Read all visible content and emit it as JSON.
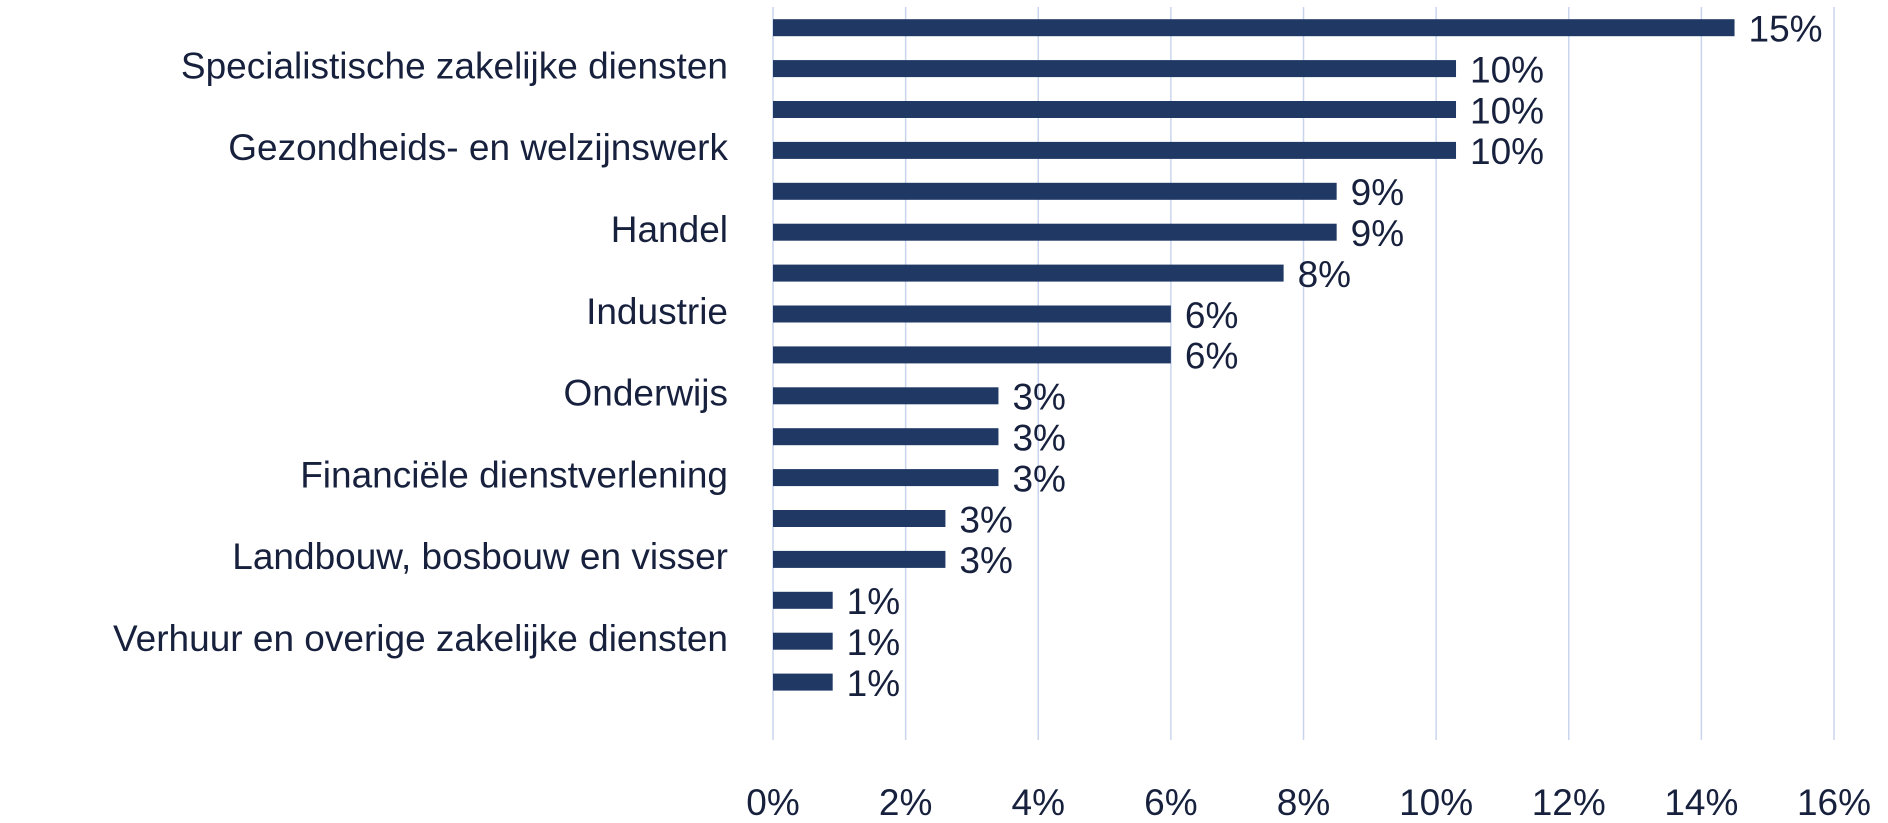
{
  "chart_data": {
    "type": "barh",
    "categories": [
      null,
      "Specialistische zakelijke diensten",
      null,
      "Gezondheids- en welzijnswerk",
      null,
      "Handel",
      null,
      "Industrie",
      null,
      "Onderwijs",
      null,
      "Financiële dienstverlening",
      null,
      "Landbouw, bosbouw en visser",
      null,
      "Verhuur en overige zakelijke diensten",
      null
    ],
    "values": [
      14.5,
      10.3,
      10.3,
      10.3,
      8.5,
      8.5,
      7.7,
      6.0,
      6.0,
      3.4,
      3.4,
      3.4,
      2.6,
      2.6,
      0.9,
      0.9,
      0.9
    ],
    "value_labels": [
      "15%",
      "10%",
      "10%",
      "10%",
      "9%",
      "9%",
      "8%",
      "6%",
      "6%",
      "3%",
      "3%",
      "3%",
      "3%",
      "3%",
      "1%",
      "1%",
      "1%"
    ],
    "color": "#1f3864",
    "xlim": [
      0,
      16
    ],
    "xticks": [
      {
        "value": 0,
        "label": "0%"
      },
      {
        "value": 2,
        "label": "2%"
      },
      {
        "value": 4,
        "label": "4%"
      },
      {
        "value": 6,
        "label": "6%"
      },
      {
        "value": 8,
        "label": "8%"
      },
      {
        "value": 10,
        "label": "10%"
      },
      {
        "value": 12,
        "label": "12%"
      },
      {
        "value": 14,
        "label": "14%"
      },
      {
        "value": 16,
        "label": "16%"
      }
    ],
    "grid": true
  }
}
